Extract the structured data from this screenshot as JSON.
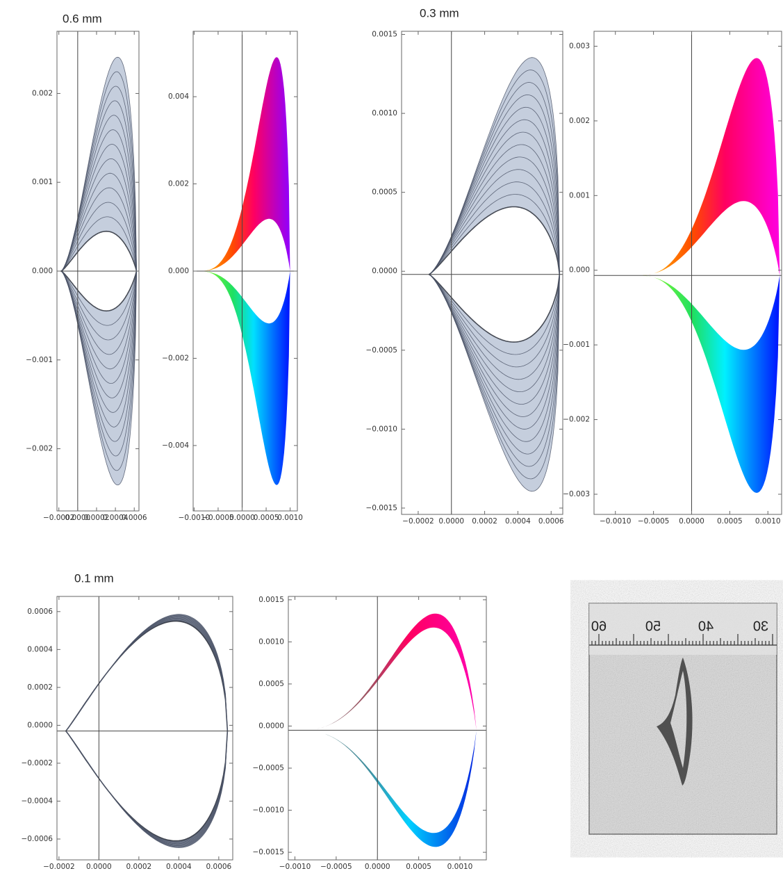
{
  "chart_data": [
    {
      "type": "contour",
      "title": "0.6 mm",
      "color": "#c5cedd",
      "xlim": [
        -0.00022,
        0.00065
      ],
      "ylim": [
        -0.0027,
        0.0027
      ],
      "xticks": [
        {
          "value": -0.0002,
          "label": "−0.0002"
        },
        {
          "value": 0,
          "label": "0.0000"
        },
        {
          "value": 0.0002,
          "label": "0.0002"
        },
        {
          "value": 0.0004,
          "label": "0.0004"
        },
        {
          "value": 0.0006,
          "label": "0.0006"
        }
      ],
      "yticks": [
        {
          "value": 0.002,
          "label": "0.002"
        },
        {
          "value": 0.001,
          "label": "0.001"
        },
        {
          "value": 0,
          "label": "0.000"
        },
        {
          "value": -0.001,
          "label": "−0.001"
        },
        {
          "value": -0.002,
          "label": "−0.002"
        }
      ]
    },
    {
      "type": "contour-colored",
      "colors": [
        "#ffd400",
        "#ff4a00",
        "#ff0060",
        "#9000ff",
        "#a8ff20",
        "#20e060",
        "#00e0ff",
        "#0010ff"
      ],
      "xlim": [
        -0.00102,
        0.00115
      ],
      "ylim": [
        -0.0055,
        0.0055
      ],
      "xticks": [
        {
          "value": -0.001,
          "label": "−0.0010"
        },
        {
          "value": -0.0005,
          "label": "−0.0005"
        },
        {
          "value": 0,
          "label": "0.0000"
        },
        {
          "value": 0.0005,
          "label": "0.0005"
        },
        {
          "value": 0.001,
          "label": "0.0010"
        }
      ],
      "yticks": [
        {
          "value": 0.004,
          "label": "0.004"
        },
        {
          "value": 0.002,
          "label": "0.002"
        },
        {
          "value": 0,
          "label": "0.000"
        },
        {
          "value": -0.002,
          "label": "−0.002"
        },
        {
          "value": -0.004,
          "label": "−0.004"
        }
      ]
    },
    {
      "type": "contour",
      "title": "0.3 mm",
      "color": "#c5cedd",
      "xlim": [
        -0.0003,
        0.00067
      ],
      "ylim": [
        -0.00154,
        0.00152
      ],
      "xticks": [
        {
          "value": -0.0002,
          "label": "−0.0002"
        },
        {
          "value": 0,
          "label": "0.0000"
        },
        {
          "value": 0.0002,
          "label": "0.0002"
        },
        {
          "value": 0.0004,
          "label": "0.0004"
        },
        {
          "value": 0.0006,
          "label": "0.0006"
        }
      ],
      "yticks": [
        {
          "value": 0.0015,
          "label": "0.0015"
        },
        {
          "value": 0.001,
          "label": "0.0010"
        },
        {
          "value": 0.0005,
          "label": "0.0005"
        },
        {
          "value": 0,
          "label": "0.0000"
        },
        {
          "value": -0.0005,
          "label": "−0.0005"
        },
        {
          "value": -0.001,
          "label": "−0.0010"
        },
        {
          "value": -0.0015,
          "label": "−0.0015"
        }
      ]
    },
    {
      "type": "contour-colored",
      "colors": [
        "#ffd400",
        "#ff4a00",
        "#ff0060",
        "#ff00e0",
        "#a8ff20",
        "#20e060",
        "#00f0ff",
        "#0010ff"
      ],
      "xlim": [
        -0.00128,
        0.00118
      ],
      "ylim": [
        -0.00327,
        0.0032
      ],
      "xticks": [
        {
          "value": -0.001,
          "label": "−0.0010"
        },
        {
          "value": -0.0005,
          "label": "−0.0005"
        },
        {
          "value": 0,
          "label": "0.0000"
        },
        {
          "value": 0.0005,
          "label": "0.0005"
        },
        {
          "value": 0.001,
          "label": "0.0010"
        }
      ],
      "yticks": [
        {
          "value": 0.003,
          "label": "0.003"
        },
        {
          "value": 0.002,
          "label": "0.002"
        },
        {
          "value": 0.001,
          "label": "0.001"
        },
        {
          "value": 0,
          "label": "0.000"
        },
        {
          "value": -0.001,
          "label": "−0.001"
        },
        {
          "value": -0.002,
          "label": "−0.002"
        },
        {
          "value": -0.003,
          "label": "−0.003"
        }
      ]
    },
    {
      "type": "contour",
      "title": "0.1 mm",
      "color": "#7d8596",
      "xlim": [
        -0.00021,
        0.00067
      ],
      "ylim": [
        -0.00071,
        0.00068
      ],
      "xticks": [
        {
          "value": -0.0002,
          "label": "−0.0002"
        },
        {
          "value": 0,
          "label": "0.0000"
        },
        {
          "value": 0.0002,
          "label": "0.0002"
        },
        {
          "value": 0.0004,
          "label": "0.0004"
        },
        {
          "value": 0.0006,
          "label": "0.0006"
        }
      ],
      "yticks": [
        {
          "value": 0.0006,
          "label": "0.0006"
        },
        {
          "value": 0.0004,
          "label": "0.0004"
        },
        {
          "value": 0.0002,
          "label": "0.0002"
        },
        {
          "value": 0,
          "label": "0.0000"
        },
        {
          "value": -0.0002,
          "label": "−0.0002"
        },
        {
          "value": -0.0004,
          "label": "−0.0004"
        },
        {
          "value": -0.0006,
          "label": "−0.0006"
        }
      ]
    },
    {
      "type": "contour-colored",
      "colors": [
        "#889090",
        "#a05060",
        "#ff0060",
        "#ff00b0",
        "#889090",
        "#4090a0",
        "#00d0ff",
        "#0020e0"
      ],
      "xlim": [
        -0.00108,
        0.00132
      ],
      "ylim": [
        -0.00159,
        0.00154
      ],
      "xticks": [
        {
          "value": -0.001,
          "label": "−0.0010"
        },
        {
          "value": -0.0005,
          "label": "−0.0005"
        },
        {
          "value": 0,
          "label": "0.0000"
        },
        {
          "value": 0.0005,
          "label": "0.0005"
        },
        {
          "value": 0.001,
          "label": "0.0010"
        }
      ],
      "yticks": [
        {
          "value": 0.0015,
          "label": "0.0015"
        },
        {
          "value": 0.001,
          "label": "0.0010"
        },
        {
          "value": 0.0005,
          "label": "0.0005"
        },
        {
          "value": 0,
          "label": "0.0000"
        },
        {
          "value": -0.0005,
          "label": "−0.0005"
        },
        {
          "value": -0.001,
          "label": "−0.0010"
        },
        {
          "value": -0.0015,
          "label": "−0.0015"
        }
      ]
    }
  ],
  "photo": {
    "ruler_labels": [
      "60",
      "50",
      "40",
      "30"
    ]
  }
}
